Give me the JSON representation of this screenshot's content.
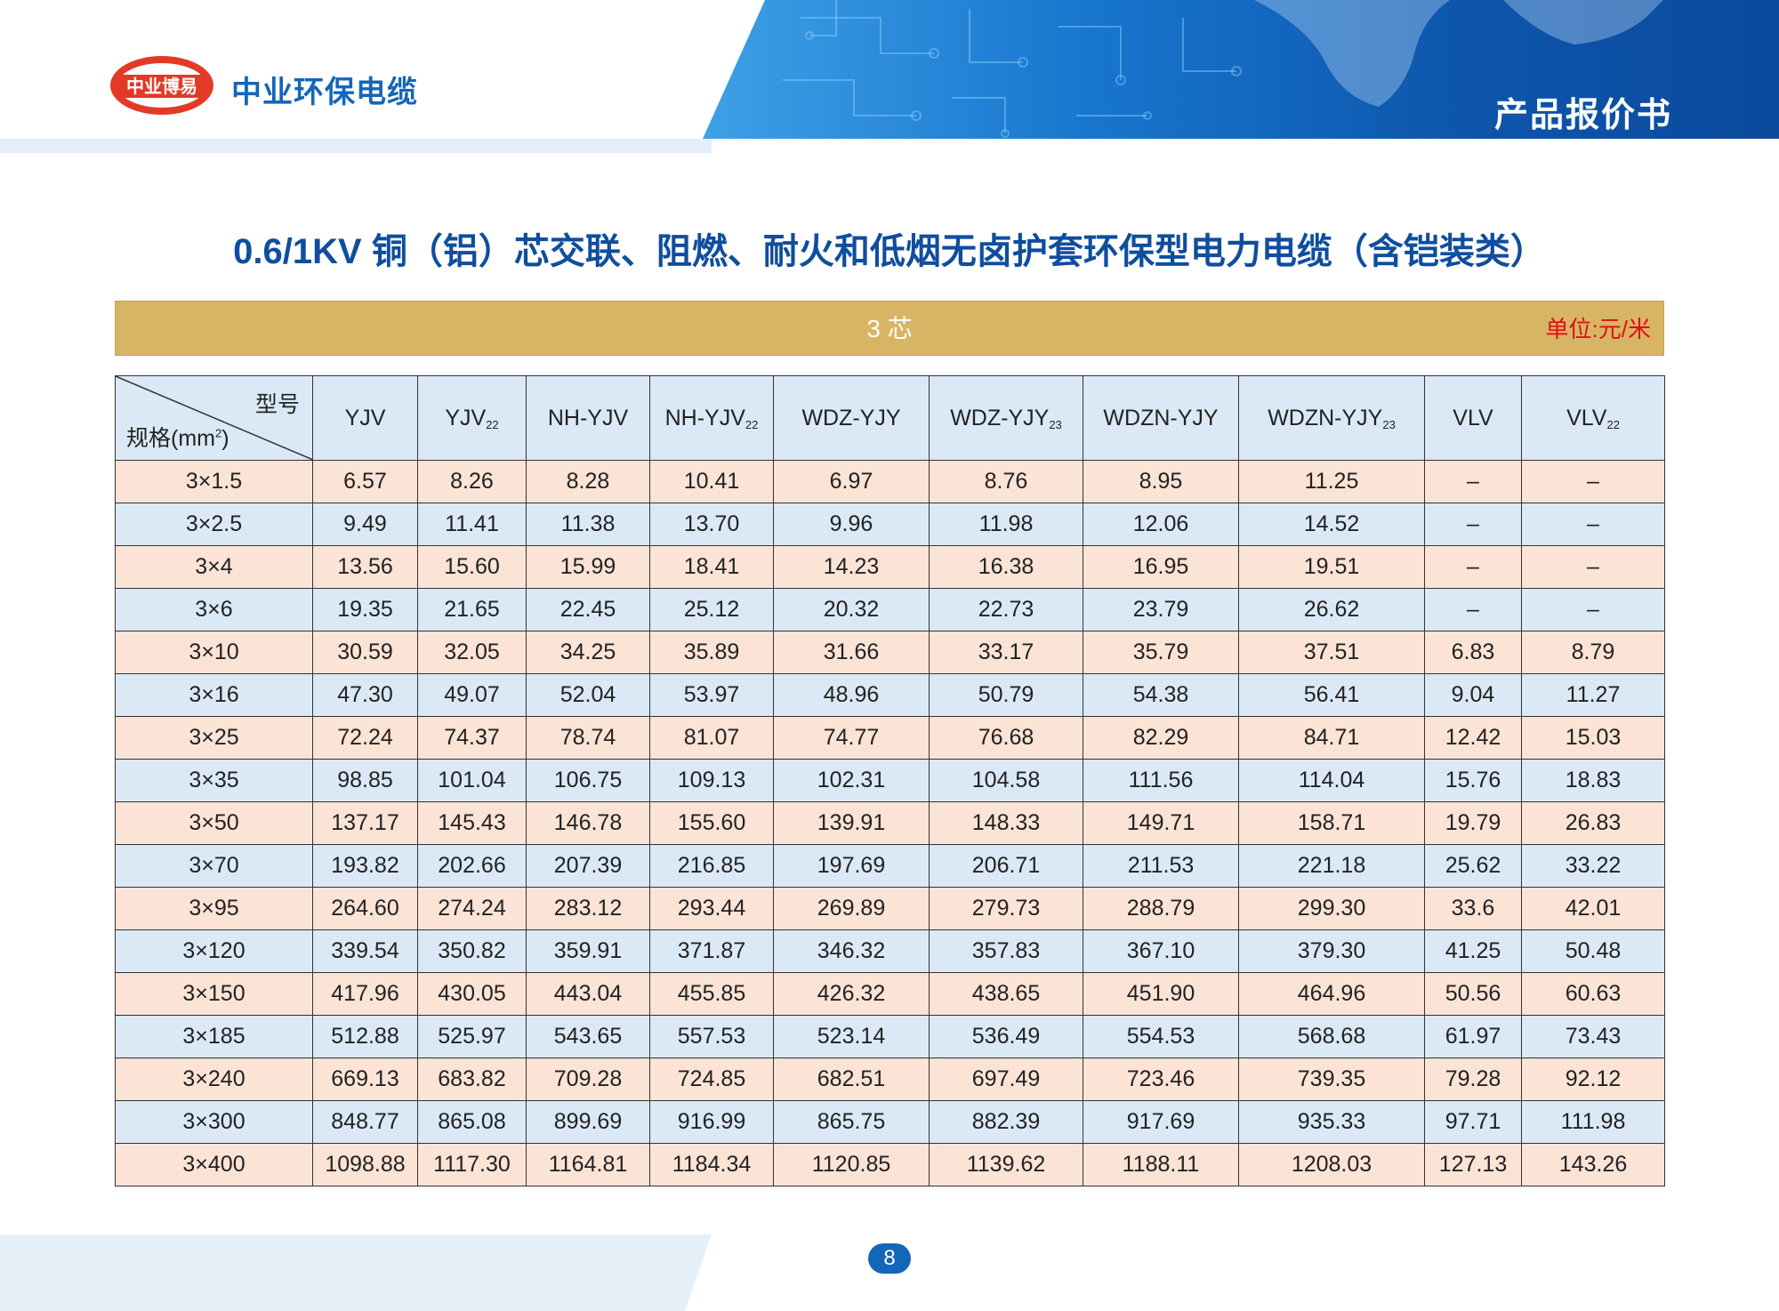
{
  "header": {
    "logo_text": "中业博易",
    "brand_name": "中业环保电缆",
    "doc_title": "产品报价书"
  },
  "page_title": "0.6/1KV 铜（铝）芯交联、阻燃、耐火和低烟无卤护套环保型电力电缆（含铠装类）",
  "section": {
    "label": "3 芯",
    "unit": "单位:元/米"
  },
  "table": {
    "corner": {
      "model": "型号",
      "spec_prefix": "规格(mm",
      "spec_sup": "2",
      "spec_suffix": ")"
    },
    "columns": [
      {
        "base": "YJV",
        "sub": ""
      },
      {
        "base": "YJV",
        "sub": "22"
      },
      {
        "base": "NH-YJV",
        "sub": ""
      },
      {
        "base": "NH-YJV",
        "sub": "22"
      },
      {
        "base": "WDZ-YJY",
        "sub": ""
      },
      {
        "base": "WDZ-YJY",
        "sub": "23"
      },
      {
        "base": "WDZN-YJY",
        "sub": ""
      },
      {
        "base": "WDZN-YJY",
        "sub": "23"
      },
      {
        "base": "VLV",
        "sub": ""
      },
      {
        "base": "VLV",
        "sub": "22"
      }
    ],
    "rows": [
      {
        "spec": "3×1.5",
        "values": [
          "6.57",
          "8.26",
          "8.28",
          "10.41",
          "6.97",
          "8.76",
          "8.95",
          "11.25",
          "–",
          "–"
        ]
      },
      {
        "spec": "3×2.5",
        "values": [
          "9.49",
          "11.41",
          "11.38",
          "13.70",
          "9.96",
          "11.98",
          "12.06",
          "14.52",
          "–",
          "–"
        ]
      },
      {
        "spec": "3×4",
        "values": [
          "13.56",
          "15.60",
          "15.99",
          "18.41",
          "14.23",
          "16.38",
          "16.95",
          "19.51",
          "–",
          "–"
        ]
      },
      {
        "spec": "3×6",
        "values": [
          "19.35",
          "21.65",
          "22.45",
          "25.12",
          "20.32",
          "22.73",
          "23.79",
          "26.62",
          "–",
          "–"
        ]
      },
      {
        "spec": "3×10",
        "values": [
          "30.59",
          "32.05",
          "34.25",
          "35.89",
          "31.66",
          "33.17",
          "35.79",
          "37.51",
          "6.83",
          "8.79"
        ]
      },
      {
        "spec": "3×16",
        "values": [
          "47.30",
          "49.07",
          "52.04",
          "53.97",
          "48.96",
          "50.79",
          "54.38",
          "56.41",
          "9.04",
          "11.27"
        ]
      },
      {
        "spec": "3×25",
        "values": [
          "72.24",
          "74.37",
          "78.74",
          "81.07",
          "74.77",
          "76.68",
          "82.29",
          "84.71",
          "12.42",
          "15.03"
        ]
      },
      {
        "spec": "3×35",
        "values": [
          "98.85",
          "101.04",
          "106.75",
          "109.13",
          "102.31",
          "104.58",
          "111.56",
          "114.04",
          "15.76",
          "18.83"
        ]
      },
      {
        "spec": "3×50",
        "values": [
          "137.17",
          "145.43",
          "146.78",
          "155.60",
          "139.91",
          "148.33",
          "149.71",
          "158.71",
          "19.79",
          "26.83"
        ]
      },
      {
        "spec": "3×70",
        "values": [
          "193.82",
          "202.66",
          "207.39",
          "216.85",
          "197.69",
          "206.71",
          "211.53",
          "221.18",
          "25.62",
          "33.22"
        ]
      },
      {
        "spec": "3×95",
        "values": [
          "264.60",
          "274.24",
          "283.12",
          "293.44",
          "269.89",
          "279.73",
          "288.79",
          "299.30",
          "33.6",
          "42.01"
        ]
      },
      {
        "spec": "3×120",
        "values": [
          "339.54",
          "350.82",
          "359.91",
          "371.87",
          "346.32",
          "357.83",
          "367.10",
          "379.30",
          "41.25",
          "50.48"
        ]
      },
      {
        "spec": "3×150",
        "values": [
          "417.96",
          "430.05",
          "443.04",
          "455.85",
          "426.32",
          "438.65",
          "451.90",
          "464.96",
          "50.56",
          "60.63"
        ]
      },
      {
        "spec": "3×185",
        "values": [
          "512.88",
          "525.97",
          "543.65",
          "557.53",
          "523.14",
          "536.49",
          "554.53",
          "568.68",
          "61.97",
          "73.43"
        ]
      },
      {
        "spec": "3×240",
        "values": [
          "669.13",
          "683.82",
          "709.28",
          "724.85",
          "682.51",
          "697.49",
          "723.46",
          "739.35",
          "79.28",
          "92.12"
        ]
      },
      {
        "spec": "3×300",
        "values": [
          "848.77",
          "865.08",
          "899.69",
          "916.99",
          "865.75",
          "882.39",
          "917.69",
          "935.33",
          "97.71",
          "111.98"
        ]
      },
      {
        "spec": "3×400",
        "values": [
          "1098.88",
          "1117.30",
          "1164.81",
          "1184.34",
          "1120.85",
          "1139.62",
          "1188.11",
          "1208.03",
          "127.13",
          "143.26"
        ]
      }
    ]
  },
  "footer": {
    "page_number": "8"
  },
  "colors": {
    "brand_blue": "#1466b8",
    "title_blue": "#0f4e9e",
    "section_gold": "#d7b564",
    "unit_red": "#e20e17",
    "row_peach": "#fbe3d6",
    "row_blue": "#dbe9f6"
  }
}
